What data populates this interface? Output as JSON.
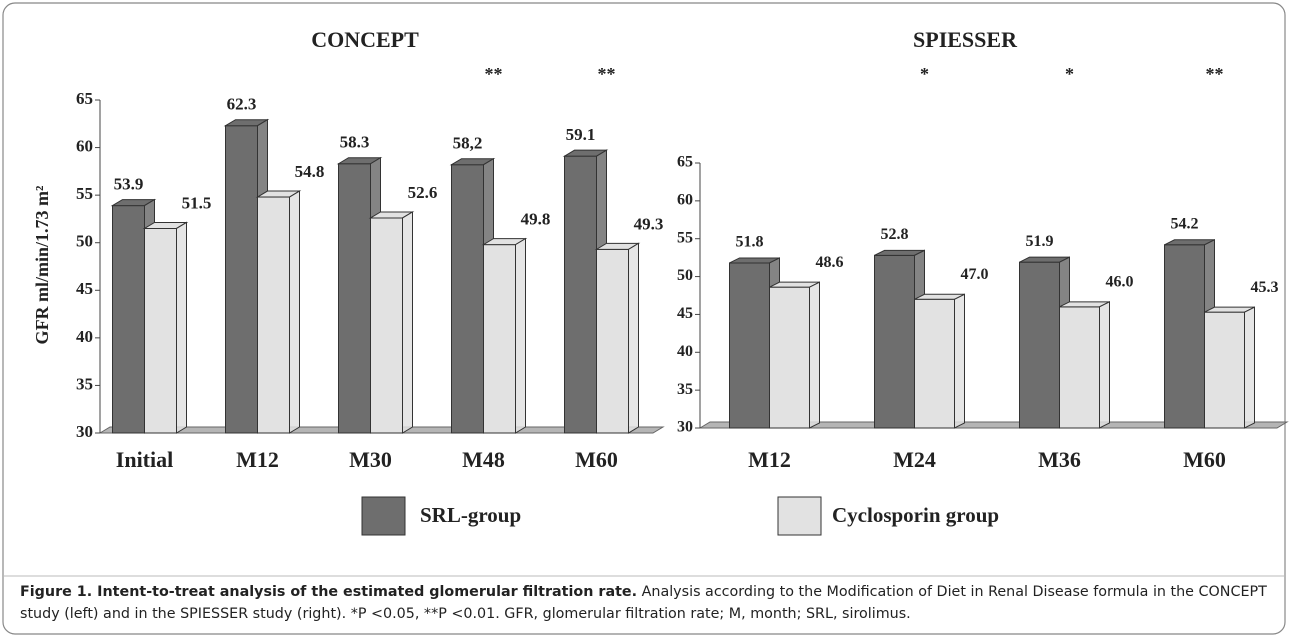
{
  "chart_data": [
    {
      "type": "bar",
      "title": "CONCEPT",
      "y_label": "GFR ml/min/1.73 m²",
      "categories": [
        "Initial",
        "M12",
        "M30",
        "M48",
        "M60"
      ],
      "series": [
        {
          "name": "SRL-group",
          "color": "#6e6e6e",
          "values": [
            53.9,
            62.3,
            58.3,
            58.2,
            59.1
          ],
          "value_labels": [
            "53.9",
            "62.3",
            "58.3",
            "58,2",
            "59.1"
          ]
        },
        {
          "name": "Cyclosporin group",
          "color": "#e2e2e2",
          "values": [
            51.5,
            54.8,
            52.6,
            49.8,
            49.3
          ],
          "value_labels": [
            "51.5",
            "54.8",
            "52.6",
            "49.8",
            "49.3"
          ]
        }
      ],
      "annotations": [
        null,
        null,
        null,
        "**",
        "**"
      ],
      "ylim": [
        30,
        65
      ],
      "yticks": [
        30,
        35,
        40,
        45,
        50,
        55,
        60,
        65
      ]
    },
    {
      "type": "bar",
      "title": "SPIESSER",
      "categories": [
        "M12",
        "M24",
        "M36",
        "M60"
      ],
      "series": [
        {
          "name": "SRL-group",
          "color": "#6e6e6e",
          "values": [
            51.8,
            52.8,
            51.9,
            54.2
          ],
          "value_labels": [
            "51.8",
            "52.8",
            "51.9",
            "54.2"
          ]
        },
        {
          "name": "Cyclosporin group",
          "color": "#e2e2e2",
          "values": [
            48.6,
            47.0,
            46.0,
            45.3
          ],
          "value_labels": [
            "48.6",
            "47.0",
            "46.0",
            "45.3"
          ]
        }
      ],
      "annotations": [
        null,
        "*",
        "*",
        "**"
      ],
      "ylim": [
        30,
        65
      ],
      "yticks": [
        30,
        35,
        40,
        45,
        50,
        55,
        60,
        65
      ]
    }
  ],
  "caption": {
    "title": "Figure 1. Intent-to-treat analysis of the estimated glomerular filtration rate.",
    "text": "Analysis according to the Modification of Diet in Renal Disease formula in the CONCEPT study (left) and in the SPIESSER study (right). *P <0.05, **P <0.01. GFR, glomerular filtration rate; M, month; SRL, sirolimus."
  }
}
